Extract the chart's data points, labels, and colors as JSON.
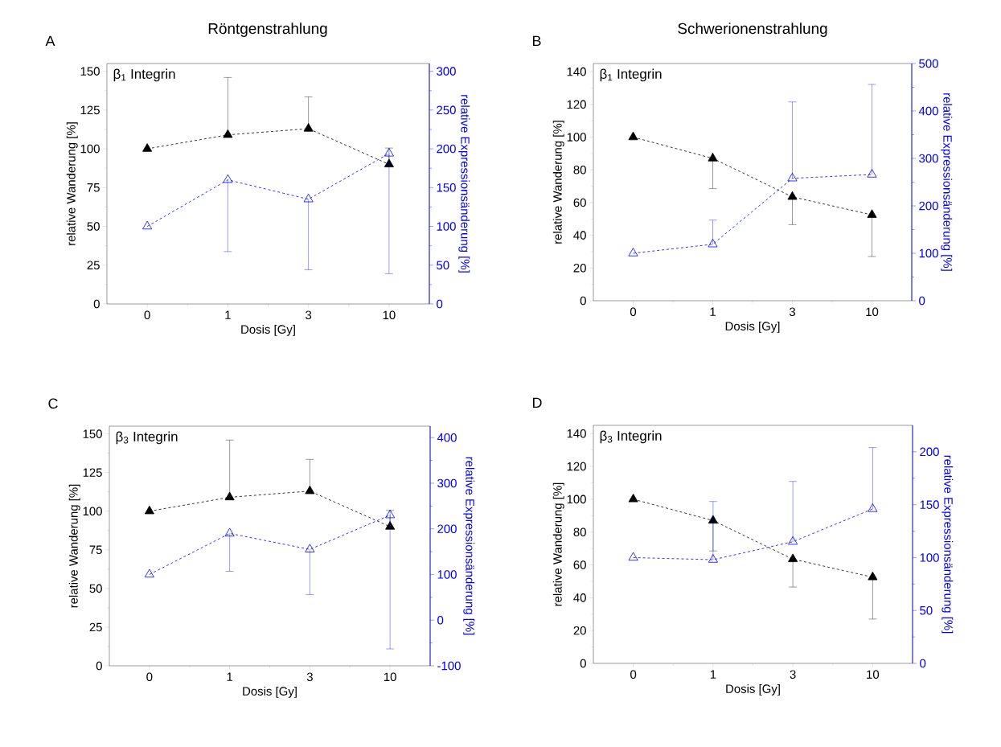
{
  "chart_data": [
    {
      "type": "line",
      "title": "Röntgenstrahlung",
      "annotations": [
        "A",
        "β$_{1}$ Integrin"
      ],
      "xlabel": "Dosis [Gy]",
      "ylabel": "relative Wanderung [%]",
      "y2label": "relative Expressionsänderung [%]",
      "categories": [
        "0",
        "1",
        "3",
        "10"
      ],
      "ylim": [
        0,
        155
      ],
      "yticks": [
        0,
        25,
        50,
        75,
        100,
        125,
        150
      ],
      "y2lim": [
        0,
        310
      ],
      "y2ticks": [
        0,
        50,
        100,
        150,
        200,
        250,
        300
      ],
      "marker": "triangle",
      "line_style": "dashed",
      "grid": false,
      "series": [
        {
          "color": "#000000",
          "values": [
            100,
            109,
            113,
            90
          ],
          "errors": [
            null,
            [
              109,
              146
            ],
            [
              113,
              133.5
            ],
            [
              90,
              100.5
            ]
          ]
        },
        {
          "color": "#0000ff",
          "axis": "y2",
          "values": [
            100,
            160,
            135,
            194
          ],
          "errors": [
            null,
            [
              67.5,
              160
            ],
            [
              44,
              135
            ],
            [
              39,
              194
            ]
          ]
        }
      ]
    },
    {
      "type": "line",
      "title": "Schwerionenstrahlung",
      "annotations": [
        "B",
        "β$_{1}$ Integrin"
      ],
      "xlabel": "Dosis [Gy]",
      "ylabel": "relative Wanderung [%]",
      "y2label": "relative Expressionsänderung [%]",
      "categories": [
        "0",
        "1",
        "3",
        "10"
      ],
      "ylim": [
        0,
        145
      ],
      "yticks": [
        0,
        20,
        40,
        60,
        80,
        100,
        120,
        140
      ],
      "y2lim": [
        0,
        500
      ],
      "y2ticks": [
        0,
        100,
        200,
        300,
        400,
        500
      ],
      "marker": "triangle",
      "line_style": "dashed",
      "grid": false,
      "series": [
        {
          "color": "#000000",
          "values": [
            100,
            87,
            63.5,
            52.5
          ],
          "errors": [
            null,
            [
              68.5,
              87
            ],
            [
              46.5,
              63.5
            ],
            [
              27,
              52.5
            ]
          ]
        },
        {
          "color": "#0000ff",
          "axis": "y2",
          "values": [
            100,
            119,
            258,
            266
          ],
          "errors": [
            null,
            [
              119,
              170
            ],
            [
              258,
              419
            ],
            [
              266,
              456
            ]
          ]
        }
      ]
    },
    {
      "type": "line",
      "annotations": [
        "C",
        "β$_{3}$ Integrin"
      ],
      "xlabel": "Dosis [Gy]",
      "ylabel": "relative Wanderung [%]",
      "y2label": "relative Expressionsänderung [%]",
      "categories": [
        "0",
        "1",
        "3",
        "10"
      ],
      "ylim": [
        0,
        155
      ],
      "yticks": [
        0,
        25,
        50,
        75,
        100,
        125,
        150
      ],
      "y2lim": [
        -100,
        425
      ],
      "y2ticks": [
        -100,
        0,
        100,
        200,
        300,
        400
      ],
      "marker": "triangle",
      "line_style": "dashed",
      "grid": false,
      "series": [
        {
          "color": "#000000",
          "values": [
            100,
            109,
            113,
            90
          ],
          "errors": [
            null,
            [
              109,
              146
            ],
            [
              113,
              133.5
            ],
            [
              90,
              100.5
            ]
          ]
        },
        {
          "color": "#0000ff",
          "axis": "y2",
          "values": [
            100,
            190,
            155,
            230
          ],
          "errors": [
            null,
            [
              107,
              190
            ],
            [
              56,
              155
            ],
            [
              -63,
              230
            ]
          ]
        }
      ]
    },
    {
      "type": "line",
      "annotations": [
        "D",
        "β$_{3}$ Integrin"
      ],
      "xlabel": "Dosis [Gy]",
      "ylabel": "relative Wanderung [%]",
      "y2label": "relative Expressionsänderung [%]",
      "categories": [
        "0",
        "1",
        "3",
        "10"
      ],
      "ylim": [
        0,
        145
      ],
      "yticks": [
        0,
        20,
        40,
        60,
        80,
        100,
        120,
        140
      ],
      "y2lim": [
        0,
        225
      ],
      "y2ticks": [
        0,
        50,
        100,
        150,
        200
      ],
      "marker": "triangle",
      "line_style": "dashed",
      "grid": false,
      "series": [
        {
          "color": "#000000",
          "values": [
            100,
            87,
            63.5,
            52.5
          ],
          "errors": [
            null,
            [
              68.5,
              87
            ],
            [
              46.5,
              63.5
            ],
            [
              27,
              52.5
            ]
          ]
        },
        {
          "color": "#0000ff",
          "axis": "y2",
          "values": [
            100,
            98,
            115,
            146
          ],
          "errors": [
            null,
            [
              98,
              153
            ],
            [
              115,
              172
            ],
            [
              146,
              204
            ]
          ]
        }
      ]
    }
  ]
}
